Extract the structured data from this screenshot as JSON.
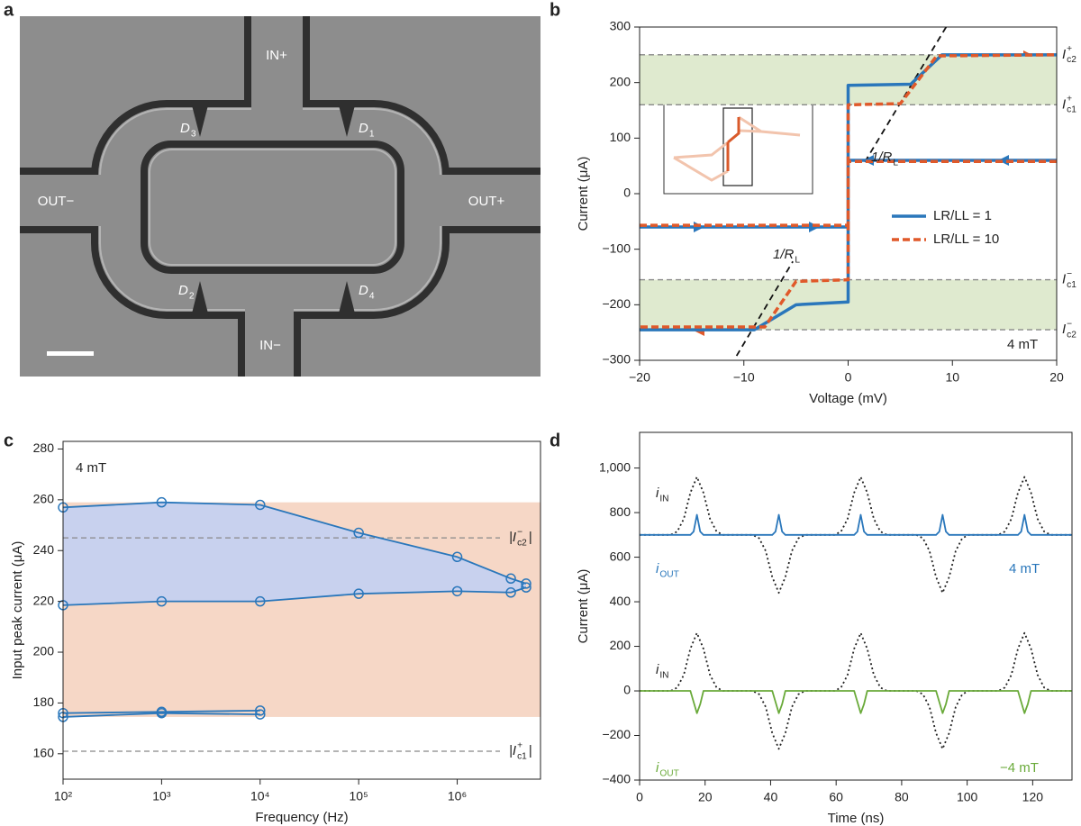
{
  "image": {
    "panel_label": "a",
    "ports": [
      "IN+",
      "OUT−",
      "OUT+",
      "IN−"
    ],
    "devices": [
      {
        "main": "D",
        "sub": "3"
      },
      {
        "main": "D",
        "sub": "1"
      },
      {
        "main": "D",
        "sub": "2"
      },
      {
        "main": "D",
        "sub": "4"
      }
    ]
  },
  "chart_data": [
    {
      "panel_label": "b",
      "type": "line",
      "xlabel": "Voltage (mV)",
      "ylabel": "Current (μA)",
      "xlim": [
        -20,
        20
      ],
      "ylim": [
        -300,
        300
      ],
      "xticks": [
        {
          "value": -20,
          "label": "−20"
        },
        {
          "value": -10,
          "label": "−10"
        },
        0,
        10,
        20
      ],
      "yticks": [
        {
          "value": -300,
          "label": "−300"
        },
        {
          "value": -200,
          "label": "−200"
        },
        {
          "value": -100,
          "label": "−100"
        },
        0,
        100,
        200,
        300
      ],
      "bands": [
        {
          "range": [
            160,
            250
          ],
          "color": "#dfeacf"
        },
        {
          "range": [
            -245,
            -155
          ],
          "color": "#dfeacf"
        }
      ],
      "reference_lines": [
        {
          "value": 250,
          "label": {
            "main": "I",
            "sub": "c2",
            "sup": "+"
          }
        },
        {
          "value": 160,
          "label": {
            "main": "I",
            "sub": "c1",
            "sup": "+"
          }
        },
        {
          "value": -155,
          "label": {
            "main": "I",
            "sub": "c1",
            "sup": "−"
          }
        },
        {
          "value": -245,
          "label": {
            "main": "I",
            "sub": "c2",
            "sup": "−"
          }
        }
      ],
      "slope_lines": [
        {
          "x": [
            -10.7,
            -5.3
          ],
          "values": [
            -292,
            -122
          ]
        },
        {
          "x": [
            1.6,
            9.4
          ],
          "values": [
            57,
            300
          ]
        }
      ],
      "series": [
        {
          "name": "LR/LL = 1",
          "color": "#2a77bb",
          "style": "solid",
          "x": [
            -20,
            0,
            0,
            6,
            9,
            20,
            null,
            20,
            0,
            0,
            -5,
            -9,
            -20
          ],
          "values": [
            -60,
            -60,
            195,
            197,
            250,
            250,
            null,
            60,
            60,
            -195,
            -200,
            -245,
            -245
          ]
        },
        {
          "name": "LR/LL = 10",
          "color": "#e0592a",
          "style": "dashed",
          "x": [
            -20,
            0,
            0,
            5,
            8.5,
            20,
            null,
            20,
            0,
            0,
            -5,
            -8,
            -20
          ],
          "values": [
            -57,
            -57,
            160,
            162,
            248,
            250,
            null,
            58,
            58,
            -155,
            -158,
            -240,
            -240
          ]
        }
      ],
      "annotations": [
        {
          "main": "1/R",
          "sub": "L"
        },
        {
          "main": "1/R",
          "sub": "L"
        },
        {
          "main": "4 mT"
        }
      ]
    },
    {
      "panel_label": "c",
      "type": "line",
      "log_x": true,
      "xlabel": "Frequency (Hz)",
      "ylabel": "Input peak current (μA)",
      "xlim": [
        100,
        7000000
      ],
      "ylim": [
        150,
        283
      ],
      "xticks": [
        {
          "value": 100,
          "label": "10²"
        },
        {
          "value": 1000,
          "label": "10³"
        },
        {
          "value": 10000,
          "label": "10⁴"
        },
        {
          "value": 100000,
          "label": "10⁵"
        },
        {
          "value": 1000000,
          "label": "10⁶"
        }
      ],
      "yticks": [
        160,
        180,
        200,
        220,
        240,
        260,
        280
      ],
      "bands": [
        {
          "range": [
            174.5,
            259
          ],
          "color": "#f6d7c6"
        }
      ],
      "fill_between": {
        "series": [
          0,
          1
        ],
        "color": "#c8d1ee"
      },
      "reference_lines": [
        {
          "value": 245,
          "label": {
            "main": "|I",
            "sub": "c2",
            "sup": "−",
            "post": "|"
          }
        },
        {
          "value": 161,
          "label": {
            "main": "|I",
            "sub": "c1",
            "sup": "+",
            "post": "|"
          }
        }
      ],
      "series": [
        {
          "color": "#2a77bb",
          "style": "solid",
          "markers": true,
          "x": [
            100,
            1000,
            10000,
            100000,
            1000000,
            3500000,
            5000000
          ],
          "values": [
            257,
            259,
            258,
            247,
            237.5,
            229,
            227
          ]
        },
        {
          "color": "#2a77bb",
          "style": "solid",
          "markers": true,
          "x": [
            100,
            1000,
            10000,
            100000,
            1000000,
            3500000,
            5000000
          ],
          "values": [
            218.5,
            220,
            220,
            223,
            224,
            223.5,
            225.5
          ]
        },
        {
          "color": "#2a77bb",
          "style": "solid",
          "markers": true,
          "x": [
            100,
            1000,
            10000
          ],
          "values": [
            176,
            176.5,
            177
          ]
        },
        {
          "color": "#2a77bb",
          "style": "solid",
          "markers": true,
          "x": [
            100,
            1000,
            10000
          ],
          "values": [
            174.5,
            176,
            175.5
          ]
        }
      ],
      "annotations": [
        {
          "main": "4 mT"
        }
      ]
    },
    {
      "panel_label": "d",
      "type": "line",
      "xlabel": "Time (ns)",
      "ylabel": "Current (μA)",
      "xlim": [
        0,
        132
      ],
      "ylim": [
        -400,
        1160
      ],
      "xticks": [
        0,
        20,
        40,
        60,
        80,
        100,
        120
      ],
      "yticks": [
        {
          "value": -400,
          "label": "−400"
        },
        {
          "value": -200,
          "label": "−200"
        },
        0,
        200,
        400,
        600,
        800,
        {
          "value": 1000,
          "label": "1,000"
        }
      ],
      "series": [
        {
          "color": "#222222",
          "style": "dotted",
          "x": [
            0,
            9.5,
            11.5,
            13.5,
            15.5,
            17.5,
            19.5,
            21.5,
            23.5,
            25.5,
            34.5,
            36.5,
            38.5,
            40.5,
            42.5,
            44.5,
            46.5,
            48.5,
            50.5,
            59.5,
            61.5,
            63.5,
            65.5,
            67.5,
            69.5,
            71.5,
            73.5,
            75.5,
            84.5,
            86.5,
            88.5,
            90.5,
            92.5,
            94.5,
            96.5,
            98.5,
            100.5,
            109.5,
            111.5,
            113.5,
            115.5,
            117.5,
            119.5,
            121.5,
            123.5,
            125.5,
            132
          ],
          "values": [
            700,
            700,
            715,
            772,
            889,
            960,
            889,
            772,
            715,
            700,
            700,
            685,
            628,
            511,
            440,
            511,
            628,
            685,
            700,
            700,
            715,
            772,
            889,
            960,
            889,
            772,
            715,
            700,
            700,
            685,
            628,
            511,
            440,
            511,
            628,
            685,
            700,
            700,
            715,
            772,
            889,
            960,
            889,
            772,
            715,
            700,
            700
          ]
        },
        {
          "color": "#2a77bb",
          "style": "solid",
          "x": [
            0,
            15.5,
            16.5,
            17.5,
            18.5,
            19.5,
            40.5,
            41.5,
            42.5,
            43.5,
            44.5,
            65.5,
            66.5,
            67.5,
            68.5,
            69.5,
            90.5,
            91.5,
            92.5,
            93.5,
            94.5,
            115.5,
            116.5,
            117.5,
            118.5,
            119.5,
            132
          ],
          "values": [
            700,
            700,
            715,
            790,
            715,
            700,
            700,
            715,
            790,
            715,
            700,
            700,
            715,
            790,
            715,
            700,
            700,
            715,
            790,
            715,
            700,
            700,
            715,
            790,
            715,
            700,
            700
          ]
        },
        {
          "color": "#222222",
          "style": "dotted",
          "x": [
            0,
            9.5,
            11.5,
            13.5,
            15.5,
            17.5,
            19.5,
            21.5,
            23.5,
            25.5,
            34.5,
            36.5,
            38.5,
            40.5,
            42.5,
            44.5,
            46.5,
            48.5,
            50.5,
            59.5,
            61.5,
            63.5,
            65.5,
            67.5,
            69.5,
            71.5,
            73.5,
            75.5,
            84.5,
            86.5,
            88.5,
            90.5,
            92.5,
            94.5,
            96.5,
            98.5,
            100.5,
            109.5,
            111.5,
            113.5,
            115.5,
            117.5,
            119.5,
            121.5,
            123.5,
            125.5,
            132
          ],
          "values": [
            0,
            0,
            15,
            72,
            189,
            260,
            189,
            72,
            15,
            0,
            0,
            -15,
            -72,
            -189,
            -260,
            -189,
            -72,
            -15,
            0,
            0,
            15,
            72,
            189,
            260,
            189,
            72,
            15,
            0,
            0,
            -15,
            -72,
            -189,
            -260,
            -189,
            -72,
            -15,
            0,
            0,
            15,
            72,
            189,
            260,
            189,
            72,
            15,
            0,
            0
          ]
        },
        {
          "color": "#6aaa3a",
          "style": "solid",
          "x": [
            0,
            15.5,
            16.5,
            17.5,
            18.5,
            19.5,
            40.5,
            41.5,
            42.5,
            43.5,
            44.5,
            65.5,
            66.5,
            67.5,
            68.5,
            69.5,
            90.5,
            91.5,
            92.5,
            93.5,
            94.5,
            115.5,
            116.5,
            117.5,
            118.5,
            119.5,
            132
          ],
          "values": [
            0,
            0,
            -50,
            -100,
            -60,
            0,
            0,
            -50,
            -100,
            -60,
            0,
            0,
            -50,
            -100,
            -60,
            0,
            0,
            -50,
            -100,
            -60,
            0,
            0,
            -50,
            -100,
            -60,
            0,
            0
          ]
        }
      ],
      "annotations": [
        {
          "main": "i",
          "sub": "IN"
        },
        {
          "main": "i",
          "sub": "OUT"
        },
        {
          "main": "4 mT"
        },
        {
          "main": "i",
          "sub": "IN"
        },
        {
          "main": "i",
          "sub": "OUT"
        },
        {
          "main": "−4 mT"
        }
      ]
    }
  ]
}
